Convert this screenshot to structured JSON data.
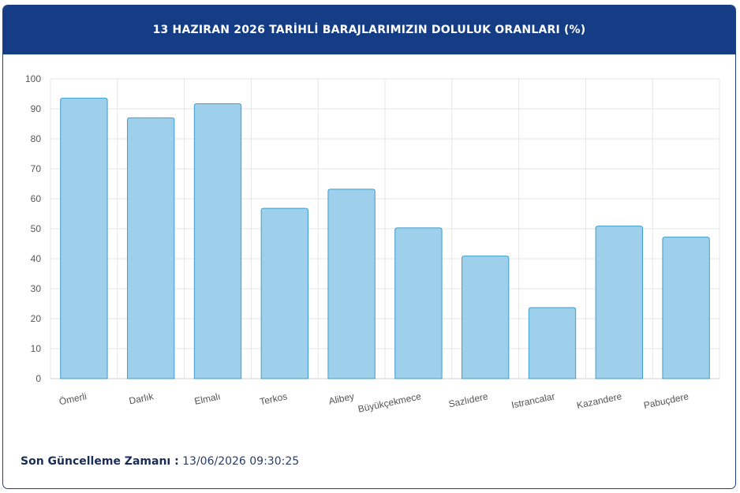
{
  "header": {
    "title": "13 HAZIRAN 2026 TARİHLİ BARAJLARIMIZIN DOLULUK ORANLARI (%)"
  },
  "chart_data": {
    "type": "bar",
    "categories": [
      "Ömerli",
      "Darlık",
      "Elmalı",
      "Terkos",
      "Alibey",
      "Büyükçekmece",
      "Sazlıdere",
      "Istrancalar",
      "Kazandere",
      "Pabuçdere"
    ],
    "values": [
      93.6,
      87.0,
      91.7,
      56.8,
      63.2,
      50.3,
      40.9,
      23.7,
      50.9,
      47.2
    ],
    "ylim": [
      0,
      100
    ],
    "yticks": [
      0,
      10,
      20,
      30,
      40,
      50,
      60,
      70,
      80,
      90,
      100
    ],
    "grid": true,
    "bar_fill": "#9ed0ec",
    "bar_stroke": "#3d9dcc"
  },
  "footer": {
    "label": "Son Güncelleme Zamanı :",
    "value": " 13/06/2026 09:30:25"
  },
  "colors": {
    "header_bg": "#143d85",
    "grid": "#e6e6e6",
    "axis_text": "#555555"
  }
}
